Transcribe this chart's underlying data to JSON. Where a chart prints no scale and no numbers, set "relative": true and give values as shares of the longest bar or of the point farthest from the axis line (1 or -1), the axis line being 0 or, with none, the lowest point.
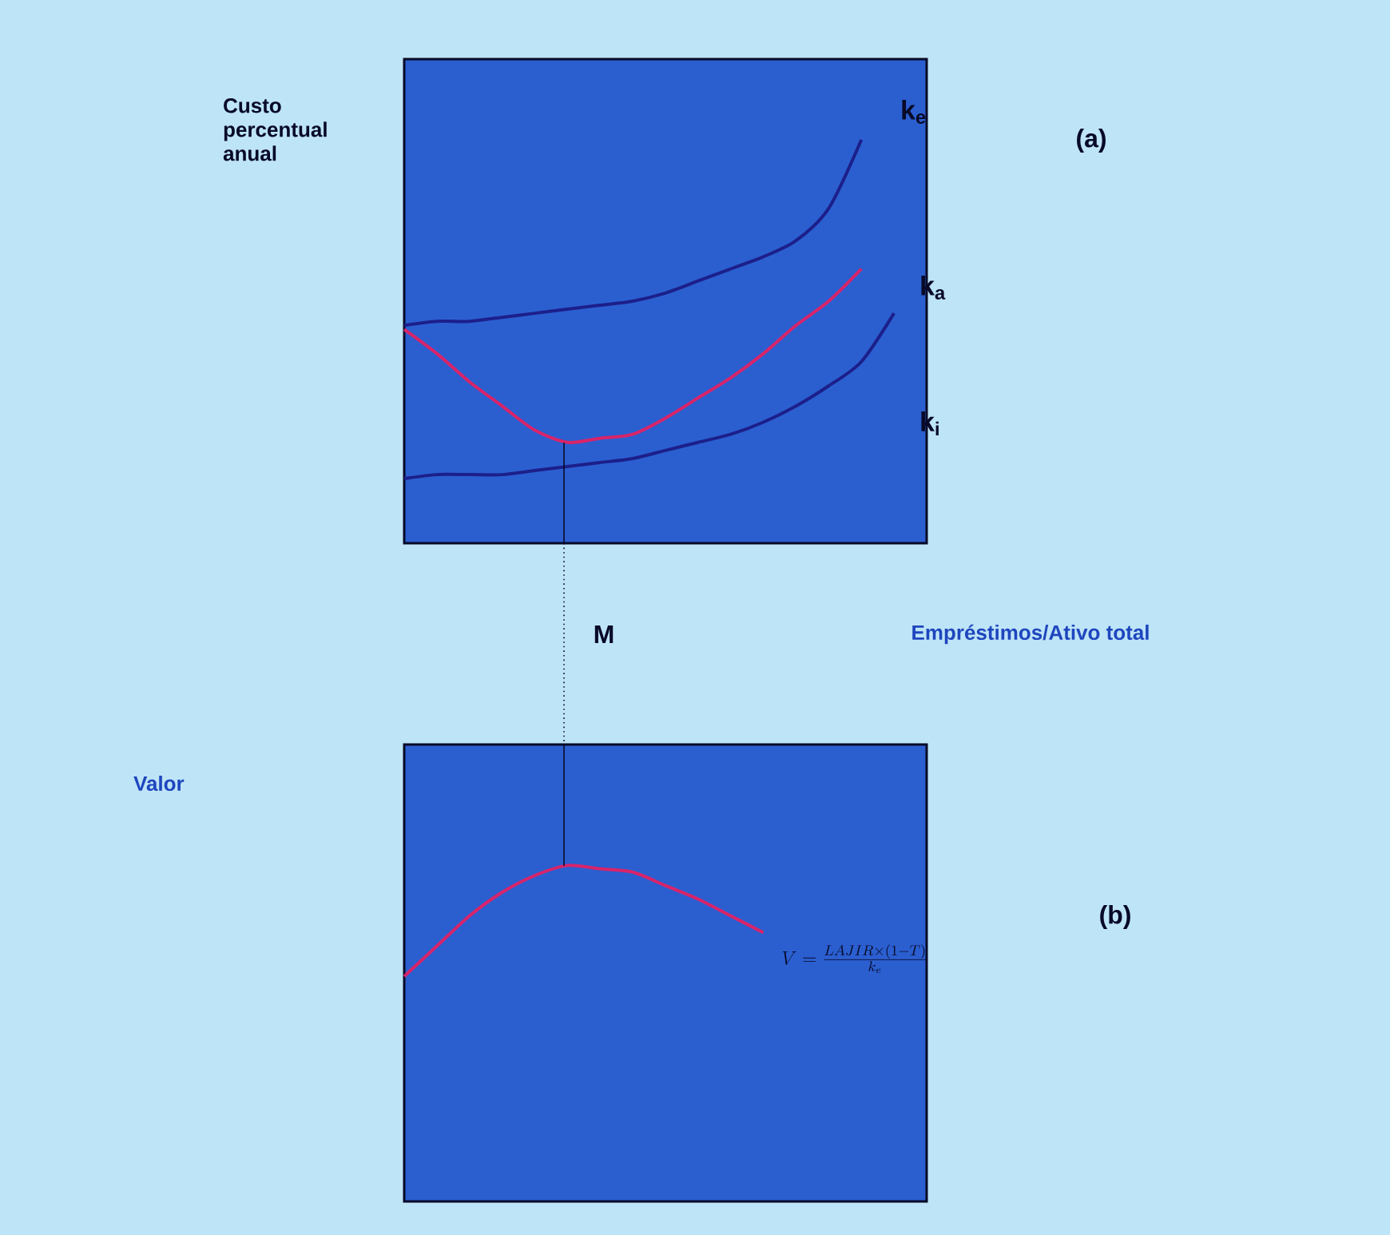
{
  "chart_data": [
    {
      "type": "line",
      "relative": true,
      "ylabel": "Custo percentual anual",
      "xlabel": "Empréstimos/Ativo total",
      "annotations": [
        "(a)",
        "M"
      ],
      "categories": [
        null,
        null,
        null,
        null,
        null,
        null,
        null,
        null,
        null,
        null,
        null,
        null,
        null,
        null,
        null,
        null,
        null
      ],
      "series": [
        {
          "name": "k$_{e}$",
          "color": "#1c1f8a",
          "values": [
            0.54,
            0.55,
            0.55,
            0.56,
            0.57,
            0.58,
            0.59,
            0.6,
            0.62,
            0.65,
            0.68,
            0.71,
            0.75,
            0.83,
            1,
            null,
            null
          ]
        },
        {
          "name": "k$_{a}$",
          "color": "#d8246a",
          "values": [
            0.53,
            0.47,
            0.4,
            0.34,
            0.28,
            0.25,
            0.26,
            0.27,
            0.31,
            0.36,
            0.41,
            0.47,
            0.54,
            0.6,
            0.68,
            null,
            null
          ]
        },
        {
          "name": "k$_{i}$",
          "color": "#1c1f8a",
          "values": [
            0.16,
            0.17,
            0.17,
            0.17,
            0.18,
            0.19,
            0.2,
            0.21,
            0.23,
            0.25,
            0.27,
            0.3,
            0.34,
            0.39,
            0.45,
            0.57,
            null
          ]
        }
      ]
    },
    {
      "type": "line",
      "relative": true,
      "ylabel": "Valor",
      "annotations": [
        "(b)",
        "V=\\frac{LAJIR\\times(1-T)}{k_e}"
      ],
      "categories": [
        null,
        null,
        null,
        null,
        null,
        null,
        null,
        null,
        null,
        null,
        null,
        null,
        null,
        null,
        null,
        null,
        null
      ],
      "series": [
        {
          "color": "#d8246a",
          "values": [
            0.67,
            0.76,
            0.85,
            0.92,
            0.97,
            1,
            0.99,
            0.98,
            0.94,
            0.9,
            0.85,
            0.8,
            null,
            null,
            null,
            null,
            null
          ]
        }
      ]
    }
  ]
}
